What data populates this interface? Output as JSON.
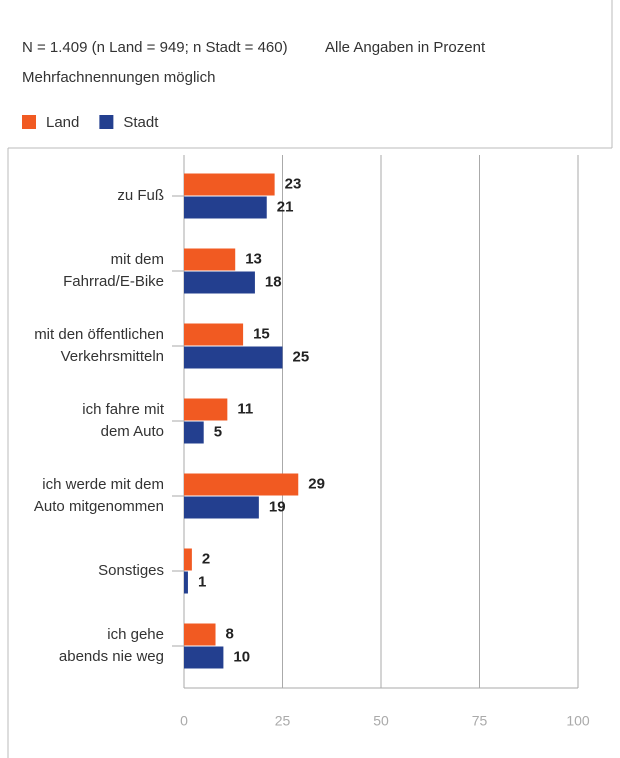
{
  "chart_data": {
    "type": "hbar",
    "title": "N = 1.409 (n Land = 949; n Stadt = 460)",
    "note": "Alle Angaben in Prozent",
    "subtitle": "Mehrfachnennungen möglich",
    "categories": [
      "zu Fuß",
      "mit dem\nFahrrad/E-Bike",
      "mit den öffentlichen\nVerkehrsmitteln",
      "ich fahre mit\ndem Auto",
      "ich werde mit dem\nAuto mitgenommen",
      "Sonstiges",
      "ich gehe\nabends nie weg"
    ],
    "series": [
      {
        "name": "Land",
        "color": "#f15a22",
        "values": [
          23,
          13,
          15,
          11,
          29,
          2,
          8
        ]
      },
      {
        "name": "Stadt",
        "color": "#233f8f",
        "values": [
          21,
          18,
          25,
          5,
          19,
          1,
          10
        ]
      }
    ],
    "xlim": [
      0,
      100
    ],
    "xticks": [
      0,
      25,
      50,
      75,
      100
    ],
    "grid": true
  }
}
